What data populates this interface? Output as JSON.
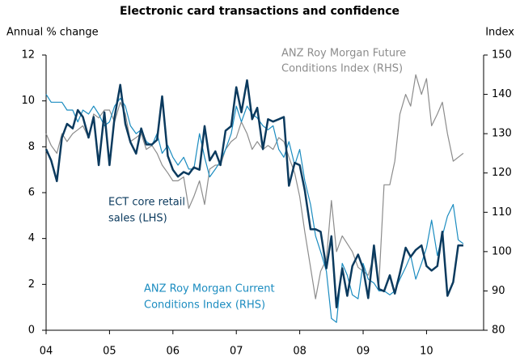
{
  "chart_data": {
    "type": "line",
    "title": "Electronic card transactions and confidence",
    "ylabel": "Annual % change",
    "y2label": "Index",
    "annotations": [
      {
        "lines": [
          "ECT core retail",
          "sales (LHS)"
        ]
      },
      {
        "lines": [
          "ANZ Roy Morgan Current",
          "Conditions Index (RHS)"
        ]
      },
      {
        "lines": [
          "ANZ Roy Morgan Future",
          "Conditions Index (RHS)"
        ]
      }
    ],
    "x": [
      2004.0,
      2004.08,
      2004.17,
      2004.25,
      2004.33,
      2004.42,
      2004.5,
      2004.58,
      2004.67,
      2004.75,
      2004.83,
      2004.92,
      2005.0,
      2005.08,
      2005.17,
      2005.25,
      2005.33,
      2005.42,
      2005.5,
      2005.58,
      2005.67,
      2005.75,
      2005.83,
      2005.92,
      2006.0,
      2006.08,
      2006.17,
      2006.25,
      2006.33,
      2006.42,
      2006.5,
      2006.58,
      2006.67,
      2006.75,
      2006.83,
      2006.92,
      2007.0,
      2007.08,
      2007.17,
      2007.25,
      2007.33,
      2007.42,
      2007.5,
      2007.58,
      2007.67,
      2007.75,
      2007.83,
      2007.92,
      2008.0,
      2008.08,
      2008.17,
      2008.25,
      2008.33,
      2008.42,
      2008.5,
      2008.58,
      2008.67,
      2008.75,
      2008.83,
      2008.92,
      2009.0,
      2009.08,
      2009.17,
      2009.25,
      2009.33,
      2009.42,
      2009.5,
      2009.58,
      2009.67,
      2009.75,
      2009.83,
      2009.92,
      2010.0,
      2010.08,
      2010.17,
      2010.25,
      2010.33,
      2010.42,
      2010.5,
      2010.58
    ],
    "series": [
      {
        "name": "ECT core retail sales (LHS)",
        "color": "#0b3a5e",
        "axis": "y",
        "values": [
          7.9,
          7.4,
          6.5,
          8.4,
          9.0,
          8.8,
          9.6,
          9.3,
          8.4,
          9.3,
          7.2,
          9.5,
          7.2,
          9.3,
          10.7,
          9.0,
          8.2,
          7.7,
          8.8,
          8.1,
          8.1,
          8.3,
          10.2,
          7.6,
          7.0,
          6.7,
          6.9,
          6.8,
          7.1,
          7.0,
          8.9,
          7.4,
          7.8,
          7.2,
          8.7,
          8.9,
          10.6,
          9.5,
          10.9,
          9.2,
          9.7,
          7.9,
          9.2,
          9.1,
          9.2,
          9.3,
          6.3,
          7.3,
          7.2,
          6.1,
          4.4,
          4.4,
          4.3,
          2.7,
          4.1,
          1.0,
          2.7,
          1.5,
          2.8,
          3.3,
          2.7,
          1.4,
          3.7,
          1.8,
          1.7,
          2.4,
          1.6,
          2.5,
          3.6,
          3.2,
          3.5,
          3.7,
          2.8,
          2.6,
          2.8,
          4.3,
          1.5,
          2.1,
          3.7,
          3.7
        ]
      },
      {
        "name": "ANZ Roy Morgan Current Conditions Index (RHS)",
        "color": "#1b8cc0",
        "axis": "y2",
        "values": [
          140,
          138,
          138,
          138,
          136,
          136,
          133,
          136,
          135,
          137,
          135,
          132,
          133,
          137,
          139,
          137,
          132,
          130,
          131,
          128,
          127,
          130,
          125,
          127,
          124,
          122,
          124,
          121,
          121,
          130,
          124,
          119,
          121,
          123,
          126,
          130,
          137,
          133,
          137,
          135,
          134,
          132,
          131,
          132,
          126,
          124,
          128,
          122,
          126,
          118,
          112,
          104,
          100,
          95,
          83,
          82,
          97,
          94,
          89,
          88,
          97,
          93,
          92,
          90,
          90,
          89,
          90,
          93,
          96,
          99,
          93,
          97,
          101,
          108,
          99,
          104,
          109,
          112,
          103,
          102
        ]
      },
      {
        "name": "ANZ Roy Morgan Future Conditions Index (RHS)",
        "color": "#8c8c8c",
        "axis": "y2",
        "values": [
          130,
          127,
          125,
          130,
          128,
          130,
          131,
          132,
          129,
          135,
          134,
          136,
          136,
          133,
          138,
          135,
          128,
          129,
          130,
          126,
          127,
          125,
          122,
          120,
          118,
          118,
          119,
          111,
          114,
          118,
          112,
          121,
          122,
          122,
          126,
          128,
          129,
          133,
          130,
          126,
          128,
          126,
          127,
          126,
          129,
          128,
          124,
          120,
          114,
          105,
          96,
          88,
          95,
          98,
          113,
          100,
          104,
          102,
          100,
          96,
          95,
          94,
          99,
          92,
          117,
          117,
          123,
          135,
          140,
          137,
          145,
          140,
          144,
          132,
          135,
          138,
          130,
          123,
          124,
          125
        ]
      }
    ],
    "xlim": [
      2004,
      2010.9
    ],
    "xticks": [
      {
        "value": 2004,
        "label": "04"
      },
      {
        "value": 2005,
        "label": "05"
      },
      {
        "value": 2006,
        "label": "06"
      },
      {
        "value": 2007,
        "label": "07"
      },
      {
        "value": 2008,
        "label": "08"
      },
      {
        "value": 2009,
        "label": "09"
      },
      {
        "value": 2010,
        "label": "10"
      }
    ],
    "ylim": [
      0,
      12
    ],
    "yticks": [
      0,
      2,
      4,
      6,
      8,
      10,
      12
    ],
    "y2lim": [
      80,
      150
    ],
    "y2ticks": [
      80,
      90,
      100,
      110,
      120,
      130,
      140,
      150
    ],
    "grid": false
  }
}
